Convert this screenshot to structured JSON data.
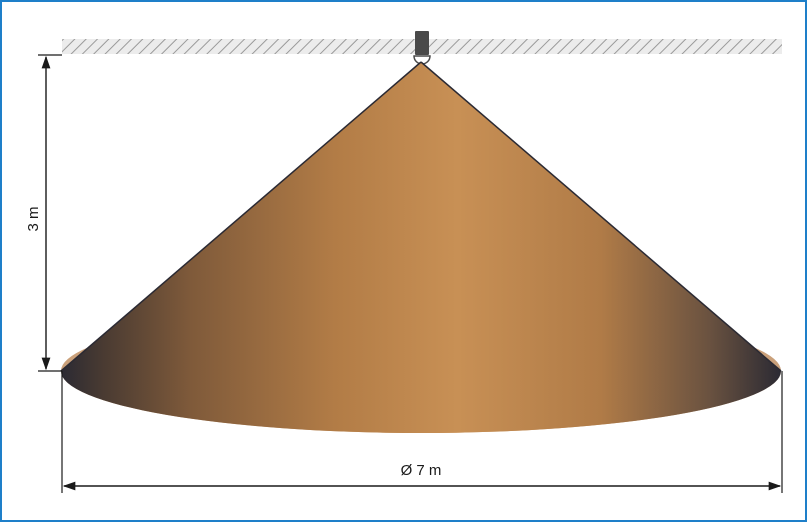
{
  "diagram": {
    "height_label": "3 m",
    "diameter_label": "Ø 7 m"
  },
  "colors": {
    "frame": "#1e7fc9",
    "cone_light": "#c89055",
    "cone_mid": "#b27c46",
    "cone_dark": "#2b2a33",
    "ceiling_hatch": "#8e8e8e",
    "ceiling_fill": "#ececec",
    "sensor": "#4a4a4a",
    "dimension_line": "#1a1a1a"
  }
}
